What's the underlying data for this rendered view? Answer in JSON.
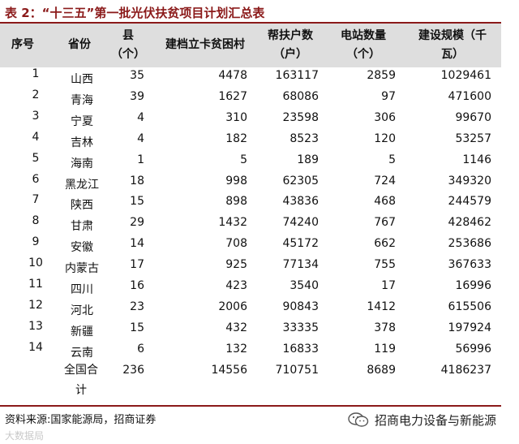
{
  "title": {
    "prefix": "表 2：",
    "text": "“十三五”第一批光伏扶贫项目计划汇总表"
  },
  "headers": {
    "idx": "序号",
    "province": "省份",
    "county_1": "县",
    "county_2": "（个）",
    "villages": "建档立卡贫困村",
    "households_1": "帮扶户数",
    "households_2": "（户）",
    "stations_1": "电站数量",
    "stations_2": "（个）",
    "capacity_1": "建设规模（千",
    "capacity_2": "瓦）"
  },
  "rows": [
    {
      "idx": "1",
      "province": "山西",
      "county": "35",
      "villages": "4478",
      "households": "163117",
      "stations": "2859",
      "capacity": "1029461"
    },
    {
      "idx": "2",
      "province": "青海",
      "county": "39",
      "villages": "1627",
      "households": "68086",
      "stations": "97",
      "capacity": "471600"
    },
    {
      "idx": "3",
      "province": "宁夏",
      "county": "4",
      "villages": "310",
      "households": "23598",
      "stations": "306",
      "capacity": "99670"
    },
    {
      "idx": "4",
      "province": "吉林",
      "county": "4",
      "villages": "182",
      "households": "8523",
      "stations": "120",
      "capacity": "53257"
    },
    {
      "idx": "5",
      "province": "海南",
      "county": "1",
      "villages": "5",
      "households": "189",
      "stations": "5",
      "capacity": "1146"
    },
    {
      "idx": "6",
      "province": "黑龙江",
      "county": "18",
      "villages": "998",
      "households": "62305",
      "stations": "724",
      "capacity": "349320"
    },
    {
      "idx": "7",
      "province": "陕西",
      "county": "15",
      "villages": "898",
      "households": "43836",
      "stations": "468",
      "capacity": "244579"
    },
    {
      "idx": "8",
      "province": "甘肃",
      "county": "29",
      "villages": "1432",
      "households": "74240",
      "stations": "767",
      "capacity": "428462"
    },
    {
      "idx": "9",
      "province": "安徽",
      "county": "14",
      "villages": "708",
      "households": "45172",
      "stations": "662",
      "capacity": "253686"
    },
    {
      "idx": "10",
      "province": "内蒙古",
      "county": "17",
      "villages": "925",
      "households": "77134",
      "stations": "755",
      "capacity": "367633"
    },
    {
      "idx": "11",
      "province": "四川",
      "county": "16",
      "villages": "423",
      "households": "3540",
      "stations": "17",
      "capacity": "16996"
    },
    {
      "idx": "12",
      "province": "河北",
      "county": "23",
      "villages": "2006",
      "households": "90843",
      "stations": "1412",
      "capacity": "615506"
    },
    {
      "idx": "13",
      "province": "新疆",
      "county": "15",
      "villages": "432",
      "households": "33335",
      "stations": "378",
      "capacity": "197924"
    },
    {
      "idx": "14",
      "province": "云南",
      "county": "6",
      "villages": "132",
      "households": "16833",
      "stations": "119",
      "capacity": "56996"
    }
  ],
  "total": {
    "label_1": "全国合",
    "label_2": "计",
    "county": "236",
    "villages": "14556",
    "households": "710751",
    "stations": "8689",
    "capacity": "4186237"
  },
  "source": "资料来源:国家能源局，招商证券",
  "wechat": {
    "icon": "wechat-icon",
    "name": "招商电力设备与新能源"
  },
  "watermark": "大数据局",
  "colors": {
    "accent": "#8b1a1a",
    "header_bg": "#dedede"
  }
}
